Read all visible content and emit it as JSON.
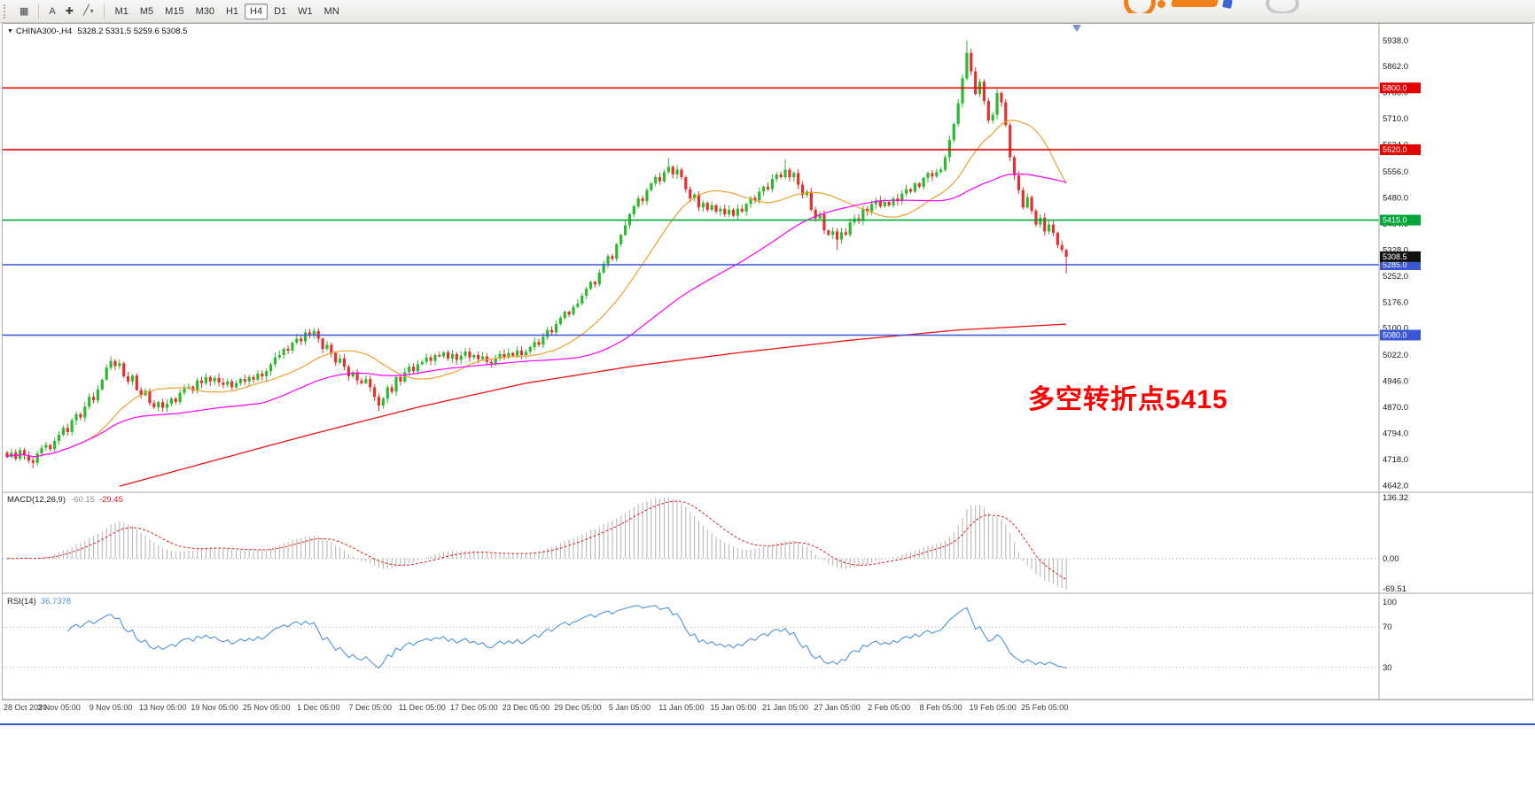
{
  "toolbar": {
    "tools": [
      {
        "name": "windows-icon",
        "glyph": "▦"
      },
      {
        "name": "text-label-tool-icon",
        "glyph": "A"
      },
      {
        "name": "crosshair-icon",
        "glyph": "✚"
      },
      {
        "name": "line-studies-icon",
        "glyph": "╱"
      }
    ],
    "caret": "▾",
    "timeframes": [
      {
        "label": "M1"
      },
      {
        "label": "M5"
      },
      {
        "label": "M15"
      },
      {
        "label": "M30"
      },
      {
        "label": "H1"
      },
      {
        "label": "H4"
      },
      {
        "label": "D1"
      },
      {
        "label": "W1"
      },
      {
        "label": "MN"
      }
    ],
    "active_timeframe": "H4"
  },
  "chart_header": {
    "collapse_icon": "▼",
    "symbol_period": "CHINA300-,H4",
    "ohlc": "5328.2 5331.5 5259.6 5308.5"
  },
  "annotation": {
    "text": "多空转折点5415",
    "color": "#ff0000"
  },
  "indicators": {
    "macd": {
      "label": "MACD(12,26,9)",
      "main_value": "-60.15",
      "signal_value": "-29.45",
      "axis": [
        {
          "label": "136.32",
          "v": 136.32
        },
        {
          "label": "0.00",
          "v": 0
        },
        {
          "label": "-69.51",
          "v": -69.51
        }
      ]
    },
    "rsi": {
      "label": "RSI(14)",
      "value": "36.7378",
      "axis": [
        {
          "label": "100",
          "v": 100
        },
        {
          "label": "70",
          "v": 70
        },
        {
          "label": "30",
          "v": 30
        }
      ],
      "levels": [
        70,
        30
      ]
    }
  },
  "price_axis": {
    "ticks": [
      "5938.0",
      "5862.0",
      "5786.0",
      "5710.0",
      "5634.0",
      "5556.0",
      "5480.0",
      "5404.0",
      "5328.0",
      "5252.0",
      "5176.0",
      "5100.0",
      "5022.0",
      "4946.0",
      "4870.0",
      "4794.0",
      "4718.0",
      "4642.0"
    ]
  },
  "time_axis": {
    "labels": [
      "28 Oct 2020",
      "3 Nov 05:00",
      "9 Nov 05:00",
      "13 Nov 05:00",
      "19 Nov 05:00",
      "25 Nov 05:00",
      "1 Dec 05:00",
      "7 Dec 05:00",
      "11 Dec 05:00",
      "17 Dec 05:00",
      "23 Dec 05:00",
      "29 Dec 05:00",
      "5 Jan 05:00",
      "11 Jan 05:00",
      "15 Jan 05:00",
      "21 Jan 05:00",
      "27 Jan 05:00",
      "2 Feb 05:00",
      "8 Feb 05:00",
      "19 Feb 05:00",
      "25 Feb 05:00"
    ]
  },
  "levels": [
    {
      "price": 5800.0,
      "label": "5800.0",
      "color": "#e30000"
    },
    {
      "price": 5620.0,
      "label": "5620.0",
      "color": "#e30000"
    },
    {
      "price": 5415.0,
      "label": "5415.0",
      "color": "#00a638"
    },
    {
      "price": 5285.0,
      "label": "5285.0",
      "color": "#3a56d4"
    },
    {
      "price": 5080.0,
      "label": "5080.0",
      "color": "#3a56d4"
    }
  ],
  "current_price": {
    "price": 5308.5,
    "label": "5308.5"
  },
  "colors": {
    "candle_up": "#2db92d",
    "candle_down": "#e23030",
    "ma_orange": "#f0a030",
    "ma_magenta": "#ff00ff",
    "ma_red": "#ee1111",
    "macd_hist": "#b2b2b2",
    "macd_signal": "#e02020",
    "rsi_line": "#4f93d9",
    "current_tag_bg": "#111111",
    "annotation_red": "#ff0000"
  },
  "chart_data": {
    "type": "candlestick",
    "title": "CHINA300-,H4",
    "ylim": [
      4630,
      5958
    ],
    "first_open": 4738,
    "closes": [
      4725,
      4738,
      4720,
      4745,
      4730,
      4715,
      4708,
      4735,
      4752,
      4760,
      4748,
      4772,
      4790,
      4810,
      4798,
      4832,
      4850,
      4840,
      4872,
      4900,
      4890,
      4922,
      4950,
      4985,
      5005,
      4990,
      4998,
      4960,
      4945,
      4962,
      4920,
      4905,
      4918,
      4882,
      4870,
      4885,
      4868,
      4880,
      4895,
      4885,
      4912,
      4925,
      4930,
      4918,
      4948,
      4940,
      4958,
      4945,
      4955,
      4942,
      4935,
      4945,
      4928,
      4940,
      4952,
      4945,
      4958,
      4950,
      4968,
      4960,
      4975,
      4995,
      5015,
      5022,
      5040,
      5035,
      5058,
      5070,
      5062,
      5088,
      5080,
      5092,
      5070,
      5040,
      5052,
      5028,
      5000,
      5012,
      4988,
      4960,
      4972,
      4948,
      4940,
      4952,
      4928,
      4900,
      4875,
      4895,
      4928,
      4915,
      4958,
      4945,
      4972,
      4988,
      4975,
      4995,
      5002,
      5015,
      5005,
      5022,
      5018,
      5030,
      5012,
      5025,
      5008,
      5020,
      5032,
      5015,
      5022,
      5010,
      5018,
      5002,
      4998,
      5012,
      5025,
      5015,
      5028,
      5020,
      5035,
      5022,
      5032,
      5045,
      5060,
      5052,
      5075,
      5095,
      5088,
      5112,
      5130,
      5148,
      5140,
      5162,
      5172,
      5195,
      5215,
      5235,
      5228,
      5262,
      5288,
      5310,
      5302,
      5345,
      5372,
      5400,
      5432,
      5455,
      5478,
      5470,
      5502,
      5522,
      5540,
      5528,
      5555,
      5570,
      5548,
      5562,
      5540,
      5505,
      5478,
      5490,
      5452,
      5465,
      5445,
      5458,
      5440,
      5448,
      5432,
      5445,
      5428,
      5448,
      5440,
      5462,
      5480,
      5472,
      5498,
      5512,
      5505,
      5535,
      5548,
      5540,
      5562,
      5540,
      5552,
      5518,
      5488,
      5498,
      5445,
      5420,
      5432,
      5385,
      5372,
      5382,
      5358,
      5380,
      5372,
      5408,
      5420,
      5412,
      5448,
      5440,
      5462,
      5472,
      5455,
      5468,
      5458,
      5478,
      5470,
      5492,
      5505,
      5498,
      5522,
      5512,
      5538,
      5552,
      5542,
      5555,
      5562,
      5598,
      5648,
      5695,
      5755,
      5828,
      5902,
      5848,
      5782,
      5818,
      5762,
      5705,
      5722,
      5785,
      5758,
      5692,
      5598,
      5545,
      5502,
      5452,
      5482,
      5442,
      5402,
      5422,
      5382,
      5402,
      5378,
      5342,
      5328.2,
      5308.5
    ],
    "last_candle_ohlc": [
      5328.2,
      5331.5,
      5259.6,
      5308.5
    ],
    "high_overrides": {
      "24": 5018,
      "69": 5098,
      "153": 5596,
      "180": 5592,
      "222": 5938
    },
    "low_overrides": {
      "6": 4692,
      "86": 4858,
      "192": 5328
    },
    "ma": {
      "orange_period": 20,
      "magenta_period": 60,
      "red_anchors": [
        [
          26,
          4640
        ],
        [
          45,
          4705
        ],
        [
          70,
          4790
        ],
        [
          95,
          4870
        ],
        [
          120,
          4940
        ],
        [
          145,
          4990
        ],
        [
          170,
          5030
        ],
        [
          195,
          5065
        ],
        [
          220,
          5095
        ],
        [
          245,
          5112
        ]
      ]
    },
    "macd": {
      "axis_max": 136.32,
      "axis_min": -69.51,
      "current_main": -60.15,
      "current_signal": -29.45
    },
    "rsi": {
      "period": 14,
      "current": 36.7378,
      "levels": [
        70,
        30
      ],
      "axis_range": [
        0,
        100
      ]
    }
  }
}
